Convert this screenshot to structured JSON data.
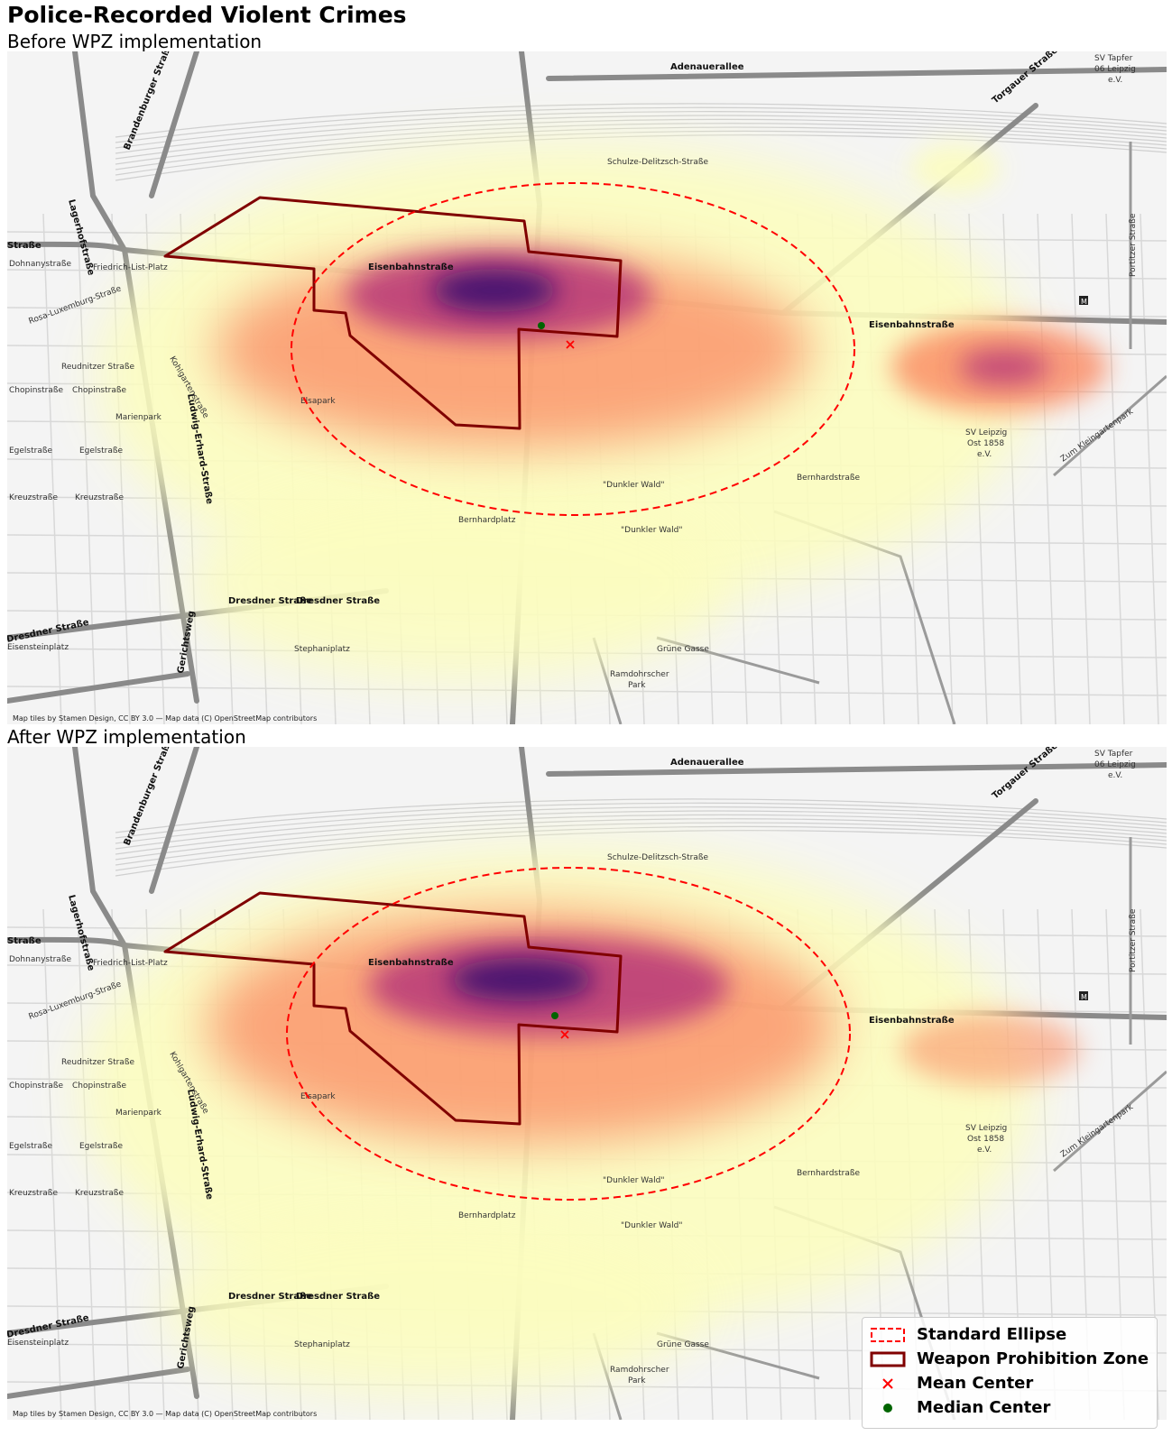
{
  "figure": {
    "title": "Police-Recorded Violent Crimes"
  },
  "panels": [
    {
      "subtitle": "Before WPZ implementation",
      "attribution": "Map tiles by Stamen Design, CC BY 3.0 — Map data (C) OpenStreetMap contributors"
    },
    {
      "subtitle": "After WPZ implementation",
      "attribution": "Map tiles by Stamen Design, CC BY 3.0 — Map data (C) OpenStreetMap contributors"
    }
  ],
  "map_labels": {
    "adenauerallee": "Adenauerallee",
    "sv_tapfer": "SV Tapfer",
    "sv_tapfer_2": "06 Leipzig",
    "sv_tapfer_3": "e.V.",
    "torgauer": "Torgauer Straße",
    "brandenburger": "Brandenburger Straße",
    "lagerhof": "Lagerhofstraße",
    "strasse_left": "Straße",
    "friedrich_list": "Friedrich-List-Platz",
    "eisenbahnstr": "Eisenbahnstraße",
    "schulze": "Schulze-Delitzsch-Straße",
    "dohnany": "Dohnanystraße",
    "rosa": "Rosa-Luxemburg-Straße",
    "reudnitzer": "Reudnitzer Straße",
    "chopin": "Chopinstraße",
    "marienpark": "Marienpark",
    "egel": "Egelstraße",
    "kreuz": "Kreuzstraße",
    "ludwig": "Ludwig-Erhard-Straße",
    "kohlgarten": "Kohlgartenstraße",
    "elsapark": "Elsapark",
    "bernhardplatz": "Bernhardplatz",
    "dunkler_wald": "\"Dunkler Wald\"",
    "dresdner": "Dresdner Straße",
    "stephaniplatz": "Stephaniplatz",
    "gerichtsweg": "Gerichtsweg",
    "sv_ost": "SV Leipzig",
    "sv_ost_2": "Ost 1858",
    "sv_ost_3": "e.V.",
    "bernhardstr": "Bernhardstraße",
    "ramdohrscher": "Ramdohrscher",
    "ramdohrscher_2": "Park",
    "gruene_gasse": "Grüne Gasse",
    "portitzer": "Portitzer Straße",
    "zum_klein": "Zum Kleingartenpark",
    "dresdner_left": "Dresdner Straße",
    "eisenstein": "Eisensteinplatz",
    "m_marker": "M"
  },
  "legend": {
    "ellipse": "Standard Ellipse",
    "wpz": "Weapon Prohibition Zone",
    "mean": "Mean Center",
    "median": "Median Center"
  },
  "colors": {
    "ellipse": "#ff0000",
    "wpz": "#800000",
    "mean": "#ff0000",
    "median": "#006400",
    "kde_low": "#fcfdbf",
    "kde_mid": "#fb8861",
    "kde_high": "#b73779",
    "kde_peak": "#3b0f70"
  }
}
